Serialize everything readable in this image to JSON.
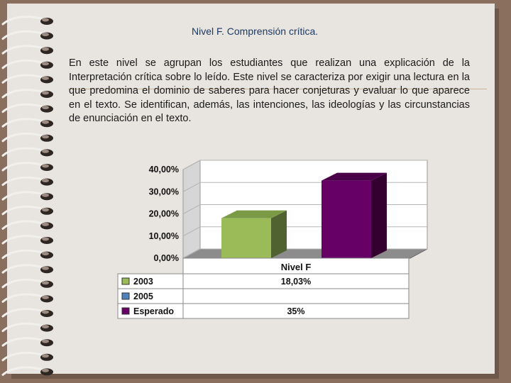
{
  "slide": {
    "title": "Nivel F. Comprensión crítica.",
    "body": "En este nivel se agrupan los estudiantes que realizan una explicación de la Interpretación crítica sobre lo leído. Este nivel se caracteriza por exigir una lectura en la que predomina el dominio de saberes para hacer conjeturas y evaluar lo que aparece en el texto. Se identifican, además, las intenciones, las ideologías y las circunstancias de enunciación en el texto."
  },
  "chart_data": {
    "type": "bar",
    "categories": [
      "Nivel F"
    ],
    "series": [
      {
        "name": "2003",
        "values": [
          18.03
        ],
        "label": "18,03%",
        "color": "#9bbb59"
      },
      {
        "name": "2005",
        "values": [
          0
        ],
        "label": "",
        "color": "#4f81bd"
      },
      {
        "name": "Esperado",
        "values": [
          35
        ],
        "label": "35%",
        "color": "#660066"
      }
    ],
    "y_ticks": [
      "0,00%",
      "10,00%",
      "20,00%",
      "30,00%",
      "40,00%"
    ],
    "ylim": [
      0,
      40
    ],
    "grid": true,
    "legend": "data-table below chart",
    "three_d": true
  }
}
